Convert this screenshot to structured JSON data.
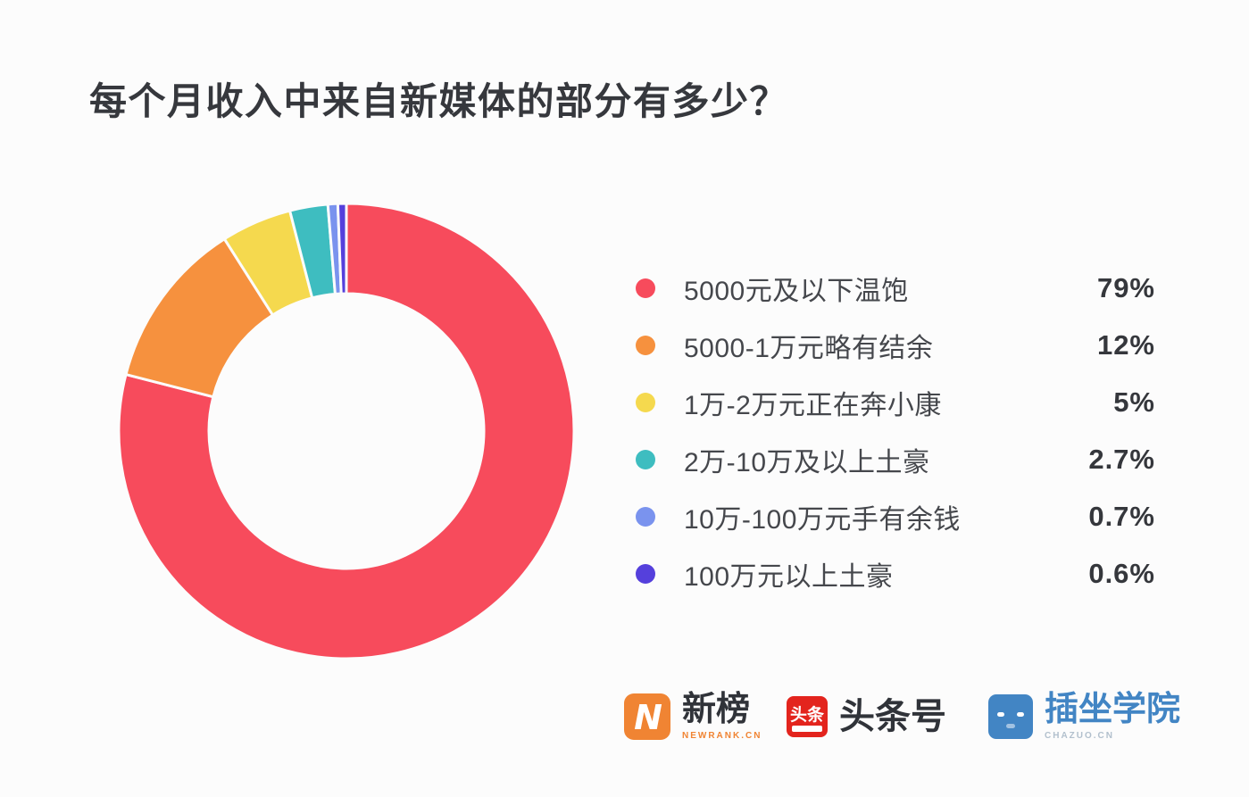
{
  "title": "每个月收入中来自新媒体的部分有多少？",
  "chart_data": {
    "type": "pie",
    "subtype": "donut",
    "title": "每个月收入中来自新媒体的部分有多少？",
    "legend_position": "right",
    "start_angle_deg": 0,
    "direction": "clockwise",
    "background": "#fcfcfc",
    "slices": [
      {
        "label": "5000元及以下温饱",
        "value": 79,
        "display": "79%",
        "color": "#f74b5c"
      },
      {
        "label": "5000-1万元略有结余",
        "value": 12,
        "display": "12%",
        "color": "#f6913e"
      },
      {
        "label": "1万-2万元正在奔小康",
        "value": 5,
        "display": "5%",
        "color": "#f5d94e"
      },
      {
        "label": "2万-10万及以上土豪",
        "value": 2.7,
        "display": "2.7%",
        "color": "#3ebdc0"
      },
      {
        "label": "10万-100万元手有余钱",
        "value": 0.7,
        "display": "0.7%",
        "color": "#7a93ee"
      },
      {
        "label": "100万元以上土豪",
        "value": 0.6,
        "display": "0.6%",
        "color": "#5540dc"
      }
    ]
  },
  "footer": {
    "logos": [
      {
        "name": "newrank",
        "text": "新榜",
        "subtext": "NEWRANK.CN",
        "brand_color": "#f08433"
      },
      {
        "name": "toutiao",
        "text": "头条号",
        "subtext": "",
        "brand_color": "#e3241d",
        "icon_text": "头条"
      },
      {
        "name": "chazuo",
        "text": "插坐学院",
        "subtext": "CHAZUO.CN",
        "brand_color": "#4285c4"
      }
    ]
  }
}
